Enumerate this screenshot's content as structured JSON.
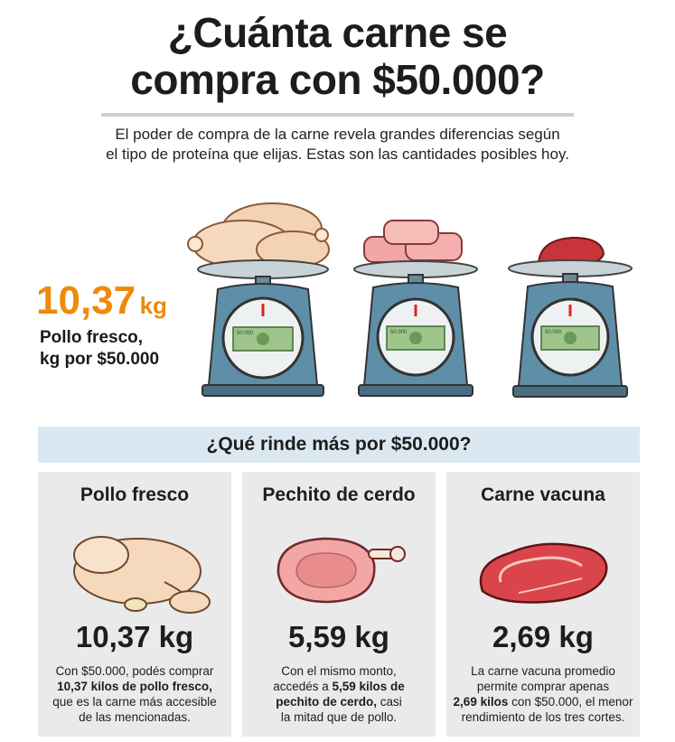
{
  "header": {
    "title_line1": "¿Cuánta carne se",
    "title_line2": "compra con $50.000?",
    "subtitle_line1": "El poder de compra de la carne revela grandes diferencias según",
    "subtitle_line2": "el tipo de proteína que elijas. Estas son las cantidades posibles hoy."
  },
  "hero": {
    "value": "10,37",
    "unit": "kg",
    "caption_line1": "Pollo fresco,",
    "caption_line2": "kg por $50.000",
    "bill_label": "50.000"
  },
  "band": {
    "label": "¿Qué rinde más por $50.000?"
  },
  "cards": [
    {
      "name": "Pollo fresco",
      "kg": "10,37 kg",
      "desc": [
        {
          "t": "Con $50.000, podés comprar",
          "b": false
        },
        {
          "t": "10,37 kilos de pollo fresco,",
          "b": true
        },
        {
          "t": "que es la carne más accesible",
          "b": false
        },
        {
          "t": "de las mencionadas.",
          "b": false
        }
      ]
    },
    {
      "name": "Pechito de cerdo",
      "kg": "5,59 kg",
      "desc_l1": "Con el mismo monto,",
      "desc_l2a": "accedés a ",
      "desc_l2b": "5,59 kilos de",
      "desc_l3a": "pechito de cerdo,",
      "desc_l3b": " casi",
      "desc_l4": "la mitad que de pollo."
    },
    {
      "name": "Carne vacuna",
      "kg": "2,69 kg",
      "desc_l1": "La carne vacuna promedio",
      "desc_l2": "permite comprar apenas",
      "desc_l3a": "2,69 kilos",
      "desc_l3b": " con $50.000, el menor",
      "desc_l4": "rendimiento de los tres cortes."
    }
  ],
  "colors": {
    "accent_orange": "#f08a0b",
    "band_blue": "#dbe8f1",
    "scale_blue": "#5f8fa8",
    "card_gray": "#eaeaea"
  }
}
